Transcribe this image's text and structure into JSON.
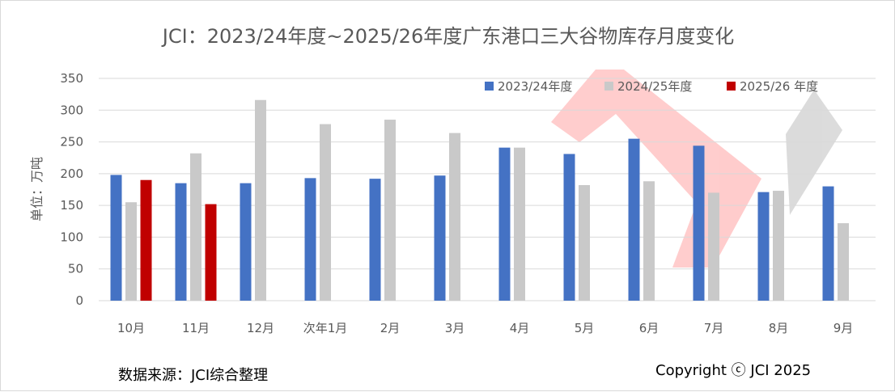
{
  "chart_data": {
    "type": "bar",
    "title": "JCI：2023/24年度~2025/26年度广东港口三大谷物库存月度变化",
    "ylabel": "单位：万吨",
    "xlabel": "",
    "ylim": [
      0,
      350
    ],
    "yticks": [
      "0",
      "50",
      "100",
      "150",
      "200",
      "250",
      "300",
      "350"
    ],
    "grid": true,
    "legend_position": "top-right",
    "categories": [
      "10月",
      "11月",
      "12月",
      "次年1月",
      "2月",
      "3月",
      "4月",
      "5月",
      "6月",
      "7月",
      "8月",
      "9月"
    ],
    "series": [
      {
        "name": "2023/24年度",
        "color": "#4472c4",
        "values": [
          198,
          185,
          185,
          193,
          192,
          197,
          241,
          231,
          255,
          244,
          171,
          180
        ]
      },
      {
        "name": "2024/25年度",
        "color": "#c9c9c9",
        "values": [
          155,
          232,
          316,
          278,
          285,
          264,
          241,
          182,
          188,
          170,
          173,
          122
        ]
      },
      {
        "name": "2025/26 年度",
        "color": "#c00000",
        "values": [
          190,
          152,
          null,
          null,
          null,
          null,
          null,
          null,
          null,
          null,
          null,
          null
        ]
      }
    ]
  },
  "footer": {
    "source": "数据来源：JCI综合整理",
    "copyright": "Copyright ⓒ JCI 2025"
  }
}
